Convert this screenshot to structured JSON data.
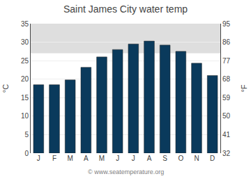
{
  "chart_data": {
    "type": "bar",
    "title": "Saint James City water temp",
    "categories": [
      "J",
      "F",
      "M",
      "A",
      "M",
      "J",
      "J",
      "A",
      "S",
      "O",
      "N",
      "D"
    ],
    "values": [
      18.5,
      18.5,
      19.8,
      23.2,
      26.0,
      28.0,
      29.5,
      30.3,
      29.2,
      27.5,
      24.3,
      21.0
    ],
    "color": "#0a3a5c",
    "ylabel": "°C",
    "y2label": "°F",
    "ylim": [
      0,
      35
    ],
    "yticks": [
      0,
      5,
      10,
      15,
      20,
      25,
      30,
      35
    ],
    "y2lim": [
      32,
      95
    ],
    "y2ticks": [
      32,
      41,
      50,
      59,
      68,
      77,
      86,
      95
    ],
    "shaded_region": [
      27,
      35
    ],
    "grid": true,
    "annotations": [
      "© www.seatemperature.org"
    ]
  }
}
